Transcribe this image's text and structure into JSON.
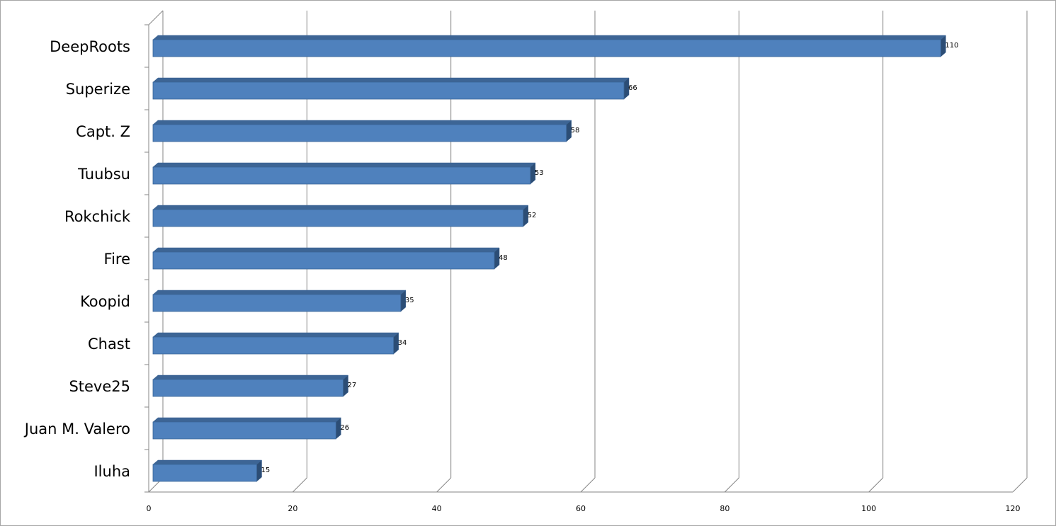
{
  "chart_data": {
    "type": "bar",
    "orientation": "horizontal",
    "style": "3d",
    "categories": [
      "DeepRoots",
      "Superize",
      "Capt. Z",
      "Tuubsu",
      "Rokchick",
      "Fire",
      "Koopid",
      "Chast",
      "Steve25",
      "Juan M. Valero",
      "Iluha"
    ],
    "values": [
      110,
      66,
      58,
      53,
      52,
      48,
      35,
      34,
      27,
      26,
      15
    ],
    "title": "",
    "xlabel": "",
    "ylabel": "",
    "xlim": [
      0,
      120
    ],
    "xticks": [
      0,
      20,
      40,
      60,
      80,
      100,
      120
    ],
    "grid": true,
    "legend": "none",
    "data_labels": true,
    "colors": {
      "bar_front": "#4f81bd",
      "bar_top": "#3d6595",
      "bar_side": "#2c4d75",
      "bar_outline": "#3a6496",
      "gridline": "#868686",
      "frame": "#a6a6a6"
    }
  }
}
